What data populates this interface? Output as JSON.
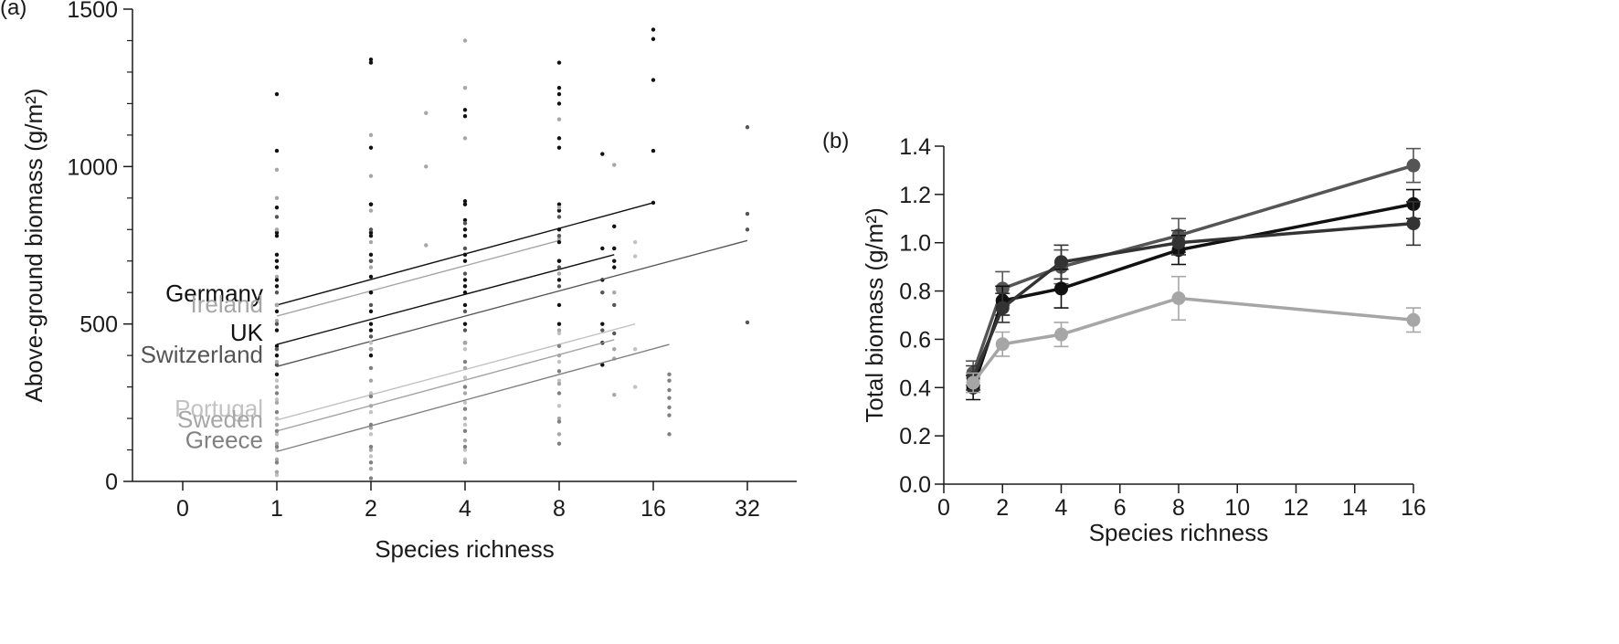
{
  "colors": {
    "black": "#111111",
    "dark_gray": "#555555",
    "mid_gray": "#808080",
    "light_gray": "#a6a6a6",
    "lighter_gray": "#c2c2c2"
  },
  "chart_data": [
    {
      "type": "scatter",
      "panel_label": "(a)",
      "xlabel": "Species richness",
      "ylabel": "Above-ground biomass (g/m²)",
      "x_scale": "log2",
      "x_ticks": [
        "0",
        "1",
        "2",
        "4",
        "8",
        "16",
        "32"
      ],
      "y_ticks": [
        "0",
        "500",
        "1000",
        "1500"
      ],
      "ylim": [
        0,
        1500
      ],
      "grid": false,
      "series": [
        {
          "name": "Germany",
          "color": "#111111",
          "regression_line": {
            "x": [
              1,
              16
            ],
            "y": [
              560,
              885
            ]
          },
          "points": [
            [
              1,
              1230
            ],
            [
              1,
              1050
            ],
            [
              1,
              870
            ],
            [
              1,
              790
            ],
            [
              1,
              720
            ],
            [
              1,
              680
            ],
            [
              1,
              620
            ],
            [
              1,
              560
            ],
            [
              2,
              1340
            ],
            [
              2,
              1330
            ],
            [
              2,
              1060
            ],
            [
              2,
              880
            ],
            [
              2,
              790
            ],
            [
              2,
              720
            ],
            [
              2,
              650
            ],
            [
              2,
              600
            ],
            [
              2,
              500
            ],
            [
              2,
              400
            ],
            [
              4,
              1180
            ],
            [
              4,
              1160
            ],
            [
              4,
              890
            ],
            [
              4,
              830
            ],
            [
              4,
              780
            ],
            [
              4,
              700
            ],
            [
              4,
              640
            ],
            [
              4,
              600
            ],
            [
              8,
              1330
            ],
            [
              8,
              1250
            ],
            [
              8,
              1230
            ],
            [
              8,
              1200
            ],
            [
              8,
              1090
            ],
            [
              8,
              1060
            ],
            [
              8,
              880
            ],
            [
              8,
              860
            ],
            [
              8,
              800
            ],
            [
              8,
              700
            ],
            [
              16,
              1435
            ],
            [
              16,
              1405
            ],
            [
              16,
              1275
            ],
            [
              16,
              1050
            ],
            [
              16,
              885
            ]
          ]
        },
        {
          "name": "Ireland",
          "color": "#a6a6a6",
          "regression_line": {
            "x": [
              1,
              8
            ],
            "y": [
              525,
              765
            ]
          },
          "points": [
            [
              1,
              990
            ],
            [
              1,
              900
            ],
            [
              1,
              800
            ],
            [
              1,
              650
            ],
            [
              1,
              560
            ],
            [
              1,
              510
            ],
            [
              2,
              1100
            ],
            [
              2,
              970
            ],
            [
              2,
              860
            ],
            [
              2,
              760
            ],
            [
              2,
              680
            ],
            [
              3,
              1170
            ],
            [
              3,
              1000
            ],
            [
              3,
              750
            ],
            [
              4,
              1400
            ],
            [
              4,
              1250
            ],
            [
              4,
              1090
            ],
            [
              4,
              880
            ],
            [
              4,
              800
            ],
            [
              4,
              720
            ],
            [
              8,
              1150
            ],
            [
              8,
              870
            ],
            [
              8,
              770
            ],
            [
              8,
              660
            ],
            [
              12,
              1005
            ],
            [
              12,
              740
            ]
          ]
        },
        {
          "name": "UK",
          "color": "#111111",
          "regression_line": {
            "x": [
              1,
              12
            ],
            "y": [
              435,
              720
            ]
          },
          "points": [
            [
              1,
              780
            ],
            [
              1,
              700
            ],
            [
              1,
              640
            ],
            [
              1,
              540
            ],
            [
              1,
              480
            ],
            [
              1,
              430
            ],
            [
              1,
              400
            ],
            [
              1,
              340
            ],
            [
              2,
              880
            ],
            [
              2,
              780
            ],
            [
              2,
              700
            ],
            [
              2,
              600
            ],
            [
              2,
              540
            ],
            [
              2,
              480
            ],
            [
              2,
              420
            ],
            [
              4,
              880
            ],
            [
              4,
              800
            ],
            [
              4,
              720
            ],
            [
              4,
              620
            ],
            [
              4,
              560
            ],
            [
              4,
              500
            ],
            [
              4,
              440
            ],
            [
              8,
              760
            ],
            [
              8,
              700
            ],
            [
              8,
              640
            ],
            [
              8,
              560
            ],
            [
              8,
              500
            ],
            [
              11,
              1040
            ],
            [
              11,
              740
            ],
            [
              11,
              640
            ],
            [
              11,
              500
            ],
            [
              11,
              440
            ],
            [
              11,
              370
            ],
            [
              12,
              810
            ],
            [
              12,
              740
            ],
            [
              12,
              700
            ],
            [
              12,
              680
            ]
          ]
        },
        {
          "name": "Switzerland",
          "color": "#555555",
          "regression_line": {
            "x": [
              1,
              32
            ],
            "y": [
              365,
              765
            ]
          },
          "points": [
            [
              1,
              840
            ],
            [
              1,
              600
            ],
            [
              1,
              500
            ],
            [
              1,
              420
            ],
            [
              1,
              370
            ],
            [
              2,
              800
            ],
            [
              2,
              700
            ],
            [
              2,
              560
            ],
            [
              2,
              460
            ],
            [
              4,
              820
            ],
            [
              4,
              740
            ],
            [
              4,
              660
            ],
            [
              4,
              540
            ],
            [
              4,
              480
            ],
            [
              8,
              840
            ],
            [
              8,
              780
            ],
            [
              8,
              680
            ],
            [
              8,
              620
            ],
            [
              11,
              600
            ],
            [
              11,
              480
            ],
            [
              12,
              560
            ],
            [
              12,
              470
            ],
            [
              32,
              1125
            ],
            [
              32,
              850
            ],
            [
              32,
              800
            ],
            [
              32,
              505
            ]
          ]
        },
        {
          "name": "Portugal",
          "color": "#c2c2c2",
          "regression_line": {
            "x": [
              1,
              14
            ],
            "y": [
              195,
              500
            ]
          },
          "points": [
            [
              1,
              320
            ],
            [
              1,
              260
            ],
            [
              1,
              200
            ],
            [
              1,
              150
            ],
            [
              1,
              100
            ],
            [
              1,
              60
            ],
            [
              1,
              20
            ],
            [
              2,
              440
            ],
            [
              2,
              360
            ],
            [
              2,
              280
            ],
            [
              2,
              220
            ],
            [
              2,
              150
            ],
            [
              2,
              80
            ],
            [
              4,
              420
            ],
            [
              4,
              330
            ],
            [
              4,
              250
            ],
            [
              4,
              180
            ],
            [
              4,
              100
            ],
            [
              4,
              70
            ],
            [
              8,
              470
            ],
            [
              8,
              380
            ],
            [
              8,
              320
            ],
            [
              8,
              240
            ],
            [
              14,
              760
            ],
            [
              14,
              715
            ],
            [
              14,
              420
            ],
            [
              14,
              300
            ]
          ]
        },
        {
          "name": "Sweden",
          "color": "#a6a6a6",
          "regression_line": {
            "x": [
              1,
              12
            ],
            "y": [
              160,
              450
            ]
          },
          "points": [
            [
              1,
              380
            ],
            [
              1,
              300
            ],
            [
              1,
              250
            ],
            [
              1,
              180
            ],
            [
              1,
              120
            ],
            [
              1,
              70
            ],
            [
              1,
              30
            ],
            [
              2,
              420
            ],
            [
              2,
              320
            ],
            [
              2,
              240
            ],
            [
              2,
              170
            ],
            [
              2,
              100
            ],
            [
              2,
              40
            ],
            [
              4,
              440
            ],
            [
              4,
              360
            ],
            [
              4,
              280
            ],
            [
              4,
              200
            ],
            [
              4,
              130
            ],
            [
              4,
              60
            ],
            [
              8,
              480
            ],
            [
              8,
              400
            ],
            [
              8,
              310
            ],
            [
              8,
              200
            ],
            [
              8,
              150
            ],
            [
              12,
              600
            ],
            [
              12,
              420
            ],
            [
              12,
              390
            ],
            [
              12,
              275
            ]
          ]
        },
        {
          "name": "Greece",
          "color": "#808080",
          "regression_line": {
            "x": [
              1,
              18
            ],
            "y": [
              95,
              435
            ]
          },
          "points": [
            [
              1,
              280
            ],
            [
              1,
              220
            ],
            [
              1,
              160
            ],
            [
              1,
              110
            ],
            [
              1,
              60
            ],
            [
              2,
              360
            ],
            [
              2,
              270
            ],
            [
              2,
              180
            ],
            [
              2,
              110
            ],
            [
              2,
              60
            ],
            [
              2,
              10
            ],
            [
              4,
              380
            ],
            [
              4,
              300
            ],
            [
              4,
              230
            ],
            [
              4,
              160
            ],
            [
              4,
              110
            ],
            [
              8,
              430
            ],
            [
              8,
              350
            ],
            [
              8,
              280
            ],
            [
              8,
              190
            ],
            [
              8,
              120
            ],
            [
              18,
              340
            ],
            [
              18,
              320
            ],
            [
              18,
              290
            ],
            [
              18,
              265
            ],
            [
              18,
              235
            ],
            [
              18,
              210
            ],
            [
              18,
              150
            ]
          ]
        }
      ]
    },
    {
      "type": "line",
      "panel_label": "(b)",
      "xlabel": "Species richness",
      "ylabel": "Total biomass (g/m²)",
      "xlim": [
        0,
        16
      ],
      "ylim": [
        0,
        1.4
      ],
      "x_ticks": [
        "0",
        "2",
        "4",
        "6",
        "8",
        "10",
        "12",
        "14",
        "16"
      ],
      "y_ticks": [
        "0.0",
        "0.2",
        "0.4",
        "0.6",
        "0.8",
        "1.0",
        "1.2",
        "1.4"
      ],
      "grid": false,
      "x": [
        1,
        2,
        4,
        8,
        16
      ],
      "series": [
        {
          "color": "#555555",
          "values": [
            0.46,
            0.81,
            0.9,
            1.03,
            1.32
          ],
          "error": [
            0.05,
            0.07,
            0.07,
            0.07,
            0.07
          ]
        },
        {
          "color": "#111111",
          "values": [
            0.4,
            0.76,
            0.81,
            0.97,
            1.16
          ],
          "error": [
            0.05,
            0.06,
            0.08,
            0.06,
            0.06
          ]
        },
        {
          "color": "#333333",
          "values": [
            0.44,
            0.73,
            0.92,
            1.0,
            1.08
          ],
          "error": [
            0.05,
            0.06,
            0.07,
            0.05,
            0.09
          ]
        },
        {
          "color": "#a6a6a6",
          "values": [
            0.42,
            0.58,
            0.62,
            0.77,
            0.68
          ],
          "error": [
            0.04,
            0.05,
            0.05,
            0.09,
            0.05
          ]
        }
      ]
    }
  ]
}
